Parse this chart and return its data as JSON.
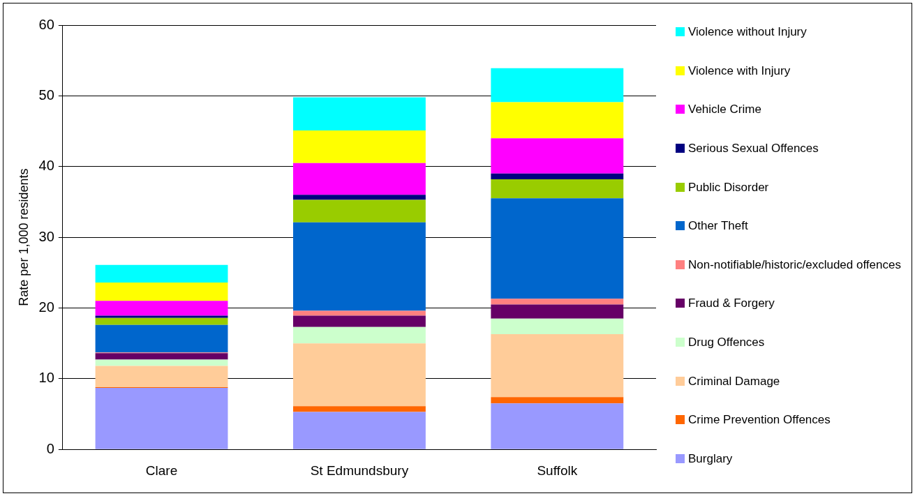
{
  "chart_data": {
    "type": "bar",
    "stacked": true,
    "ylabel": "Rate per 1,000 residents",
    "categories": [
      "Clare",
      "St Edmundsbury",
      "Suffolk"
    ],
    "series": [
      {
        "name": "Burglary",
        "color": "#9999ff",
        "values": [
          8.7,
          5.3,
          6.5
        ]
      },
      {
        "name": "Crime Prevention Offences",
        "color": "#ff6600",
        "values": [
          0.1,
          0.8,
          0.9
        ]
      },
      {
        "name": "Criminal Damage",
        "color": "#ffcc99",
        "values": [
          3.0,
          8.9,
          8.9
        ]
      },
      {
        "name": "Drug Offences",
        "color": "#ccffcc",
        "values": [
          0.9,
          2.3,
          2.2
        ]
      },
      {
        "name": "Fraud & Forgery",
        "color": "#660066",
        "values": [
          0.9,
          1.6,
          2.0
        ]
      },
      {
        "name": "Non-notifiable/historic/excluded offences",
        "color": "#ff8080",
        "values": [
          0.1,
          0.7,
          0.8
        ]
      },
      {
        "name": "Other Theft",
        "color": "#0066cc",
        "values": [
          3.9,
          12.5,
          14.2
        ]
      },
      {
        "name": "Public Disorder",
        "color": "#99cc00",
        "values": [
          1.0,
          3.2,
          2.7
        ]
      },
      {
        "name": "Serious Sexual Offences",
        "color": "#000080",
        "values": [
          0.3,
          0.7,
          0.8
        ]
      },
      {
        "name": "Vehicle Crime",
        "color": "#ff00ff",
        "values": [
          2.1,
          4.5,
          5.0
        ]
      },
      {
        "name": "Violence with Injury",
        "color": "#ffff00",
        "values": [
          2.6,
          4.6,
          5.1
        ]
      },
      {
        "name": "Violence without Injury",
        "color": "#00ffff",
        "values": [
          2.5,
          4.7,
          4.8
        ]
      }
    ],
    "ylim": [
      0,
      60
    ],
    "yticks": [
      0,
      10,
      20,
      30,
      40,
      50,
      60
    ],
    "grid": "y",
    "legend": "right"
  }
}
